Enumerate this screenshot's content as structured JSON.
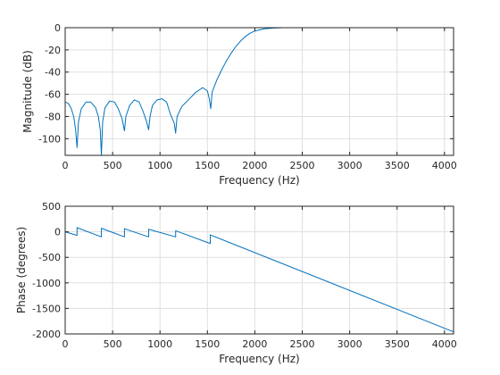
{
  "colors": {
    "trace": "#0072BD",
    "grid": "#dfdfdf",
    "axis": "#262626",
    "background": "#ffffff"
  },
  "chart_data": [
    {
      "type": "line",
      "xlabel": "Frequency (Hz)",
      "ylabel": "Magnitude (dB)",
      "xlim": [
        0,
        4096
      ],
      "ylim": [
        -115,
        0
      ],
      "xticks": [
        0,
        500,
        1000,
        1500,
        2000,
        2500,
        3000,
        3500,
        4000
      ],
      "yticks": [
        0,
        -20,
        -40,
        -60,
        -80,
        -100
      ],
      "grid": true,
      "series": [
        {
          "x": [
            0,
            30,
            60,
            90,
            110,
            125,
            140,
            170,
            220,
            270,
            320,
            350,
            370,
            382,
            395,
            420,
            470,
            520,
            560,
            600,
            625,
            640,
            680,
            730,
            780,
            820,
            860,
            880,
            895,
            920,
            970,
            1020,
            1070,
            1110,
            1150,
            1165,
            1180,
            1230,
            1300,
            1380,
            1450,
            1500,
            1520,
            1535,
            1550,
            1600,
            1650,
            1700,
            1750,
            1800,
            1850,
            1900,
            1950,
            2000,
            2100,
            2200,
            2300,
            2500,
            3000,
            3500,
            4096
          ],
          "y": [
            -67,
            -68,
            -72,
            -80,
            -92,
            -108,
            -85,
            -73,
            -67,
            -67,
            -72,
            -80,
            -92,
            -115,
            -85,
            -72,
            -66,
            -67,
            -73,
            -82,
            -93,
            -80,
            -70,
            -65,
            -67,
            -75,
            -85,
            -92,
            -80,
            -70,
            -65,
            -64,
            -67,
            -78,
            -86,
            -95,
            -80,
            -71,
            -65,
            -58,
            -54,
            -57,
            -64,
            -73,
            -58,
            -47,
            -38,
            -30,
            -23,
            -17,
            -12,
            -8,
            -5,
            -3,
            -1,
            -0.3,
            0,
            0,
            0,
            0,
            0
          ]
        }
      ]
    },
    {
      "type": "line",
      "xlabel": "Frequency (Hz)",
      "ylabel": "Phase (degrees)",
      "xlim": [
        0,
        4096
      ],
      "ylim": [
        -2000,
        500
      ],
      "xticks": [
        0,
        500,
        1000,
        1500,
        2000,
        2500,
        3000,
        3500,
        4000
      ],
      "yticks": [
        500,
        0,
        -500,
        -1000,
        -1500,
        -2000
      ],
      "grid": true,
      "series": [
        {
          "x": [
            0,
            125,
            125,
            382,
            382,
            625,
            625,
            880,
            880,
            1165,
            1165,
            1530,
            1530,
            4096
          ],
          "y": [
            0,
            -70,
            80,
            -100,
            70,
            -100,
            60,
            -100,
            50,
            -100,
            20,
            -230,
            -60,
            -1960
          ]
        }
      ]
    }
  ]
}
